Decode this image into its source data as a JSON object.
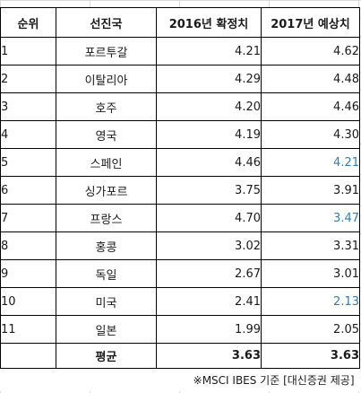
{
  "headers": {
    "rank": "순위",
    "country": "선진국",
    "y2016": "2016년 확정치",
    "y2017": "2017년 예상치"
  },
  "rows": [
    {
      "rank": "1",
      "country": "포르투갈",
      "v2016": "4.21",
      "v2017": "4.62",
      "v2017_highlight": false
    },
    {
      "rank": "2",
      "country": "이탈리아",
      "v2016": "4.29",
      "v2017": "4.48",
      "v2017_highlight": false
    },
    {
      "rank": "3",
      "country": "호주",
      "v2016": "4.20",
      "v2017": "4.46",
      "v2017_highlight": false
    },
    {
      "rank": "4",
      "country": "영국",
      "v2016": "4.19",
      "v2017": "4.30",
      "v2017_highlight": false
    },
    {
      "rank": "5",
      "country": "스페인",
      "v2016": "4.46",
      "v2017": "4.21",
      "v2017_highlight": true
    },
    {
      "rank": "6",
      "country": "싱가포르",
      "v2016": "3.75",
      "v2017": "3.91",
      "v2017_highlight": false
    },
    {
      "rank": "7",
      "country": "프랑스",
      "v2016": "4.70",
      "v2017": "3.47",
      "v2017_highlight": true
    },
    {
      "rank": "8",
      "country": "홍콩",
      "v2016": "3.02",
      "v2017": "3.31",
      "v2017_highlight": false
    },
    {
      "rank": "9",
      "country": "독일",
      "v2016": "2.67",
      "v2017": "3.01",
      "v2017_highlight": false
    },
    {
      "rank": "10",
      "country": "미국",
      "v2016": "2.41",
      "v2017": "2.13",
      "v2017_highlight": true
    },
    {
      "rank": "11",
      "country": "일본",
      "v2016": "1.99",
      "v2017": "2.05",
      "v2017_highlight": false
    }
  ],
  "average": {
    "label": "평균",
    "v2016": "3.63",
    "v2017": "3.63"
  },
  "note": "※MSCI IBES 기준 [대신증권 제공]",
  "colors": {
    "highlight": "#2e7fb8",
    "grid": "#d9d9d9",
    "border": "#000000"
  }
}
